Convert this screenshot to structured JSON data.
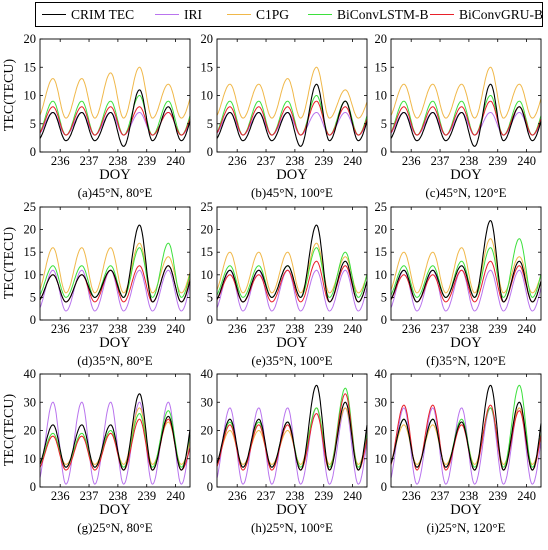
{
  "legend": [
    {
      "label": "CRIM TEC",
      "color": "#000000"
    },
    {
      "label": "IRI",
      "color": "#b974ee"
    },
    {
      "label": "C1PG",
      "color": "#f0b84a"
    },
    {
      "label": "BiConvLSTM-B",
      "color": "#3de03d"
    },
    {
      "label": "BiConvGRU-B",
      "color": "#e8202a"
    }
  ],
  "x_label": "DOY",
  "y_label": "TEC(TECU)",
  "chart_data": [
    {
      "type": "line",
      "title": "(a)45°N, 80°E",
      "xlabel": "DOY",
      "ylabel": "TEC(TECU)",
      "xlim": [
        235.3,
        240.5
      ],
      "ylim": [
        0,
        20
      ],
      "xticks": [
        236,
        237,
        238,
        239,
        240
      ],
      "yticks": [
        0,
        5,
        10,
        15,
        20
      ],
      "x": [
        235.5,
        236.5,
        237.5,
        238.5,
        239.5,
        240.5
      ],
      "series": [
        {
          "name": "CRIM TEC",
          "peaks": [
            7,
            7,
            11,
            8,
            8
          ],
          "troughs": [
            2,
            2,
            1,
            2,
            2
          ]
        },
        {
          "name": "IRI",
          "peaks": [
            7,
            7,
            7,
            7,
            7
          ],
          "troughs": [
            3,
            3,
            3,
            3,
            3
          ]
        },
        {
          "name": "C1PG",
          "peaks": [
            13,
            14,
            15,
            12,
            12
          ],
          "troughs": [
            6,
            6,
            6,
            6,
            6
          ]
        },
        {
          "name": "BiConvLSTM-B",
          "peaks": [
            9,
            9,
            10,
            9,
            9
          ],
          "troughs": [
            3,
            3,
            3,
            3,
            3
          ]
        },
        {
          "name": "BiConvGRU-B",
          "peaks": [
            8,
            8,
            8,
            7,
            8
          ],
          "troughs": [
            3,
            3,
            3,
            3,
            3
          ]
        }
      ]
    },
    {
      "type": "line",
      "title": "(b)45°N, 100°E",
      "xlabel": "DOY",
      "ylabel": "",
      "xlim": [
        235.3,
        240.5
      ],
      "ylim": [
        0,
        20
      ],
      "xticks": [
        236,
        237,
        238,
        239,
        240
      ],
      "yticks": [
        0,
        5,
        10,
        15,
        20
      ],
      "series": [
        {
          "name": "CRIM TEC",
          "peaks": [
            7,
            7,
            12,
            9,
            8
          ],
          "troughs": [
            2,
            2,
            1,
            2,
            2
          ]
        },
        {
          "name": "IRI",
          "peaks": [
            7,
            7,
            7,
            7,
            7
          ],
          "troughs": [
            3,
            3,
            3,
            3,
            3
          ]
        },
        {
          "name": "C1PG",
          "peaks": [
            12,
            13,
            15,
            11,
            11
          ],
          "troughs": [
            6,
            6,
            6,
            6,
            6
          ]
        },
        {
          "name": "BiConvLSTM-B",
          "peaks": [
            9,
            9,
            10,
            9,
            9
          ],
          "troughs": [
            3,
            3,
            3,
            3,
            3
          ]
        },
        {
          "name": "BiConvGRU-B",
          "peaks": [
            8,
            8,
            9,
            8,
            8
          ],
          "troughs": [
            3,
            3,
            3,
            3,
            3
          ]
        }
      ]
    },
    {
      "type": "line",
      "title": "(c)45°N, 120°E",
      "xlabel": "DOY",
      "ylabel": "",
      "xlim": [
        235.3,
        240.5
      ],
      "ylim": [
        0,
        20
      ],
      "xticks": [
        236,
        237,
        238,
        239,
        240
      ],
      "yticks": [
        0,
        5,
        10,
        15,
        20
      ],
      "series": [
        {
          "name": "CRIM TEC",
          "peaks": [
            7,
            7,
            12,
            8,
            8
          ],
          "troughs": [
            2,
            2,
            1,
            2,
            2
          ]
        },
        {
          "name": "IRI",
          "peaks": [
            7,
            7,
            7,
            7,
            7
          ],
          "troughs": [
            3,
            3,
            3,
            3,
            3
          ]
        },
        {
          "name": "C1PG",
          "peaks": [
            12,
            12,
            15,
            12,
            12
          ],
          "troughs": [
            6,
            6,
            6,
            6,
            6
          ]
        },
        {
          "name": "BiConvLSTM-B",
          "peaks": [
            9,
            9,
            10,
            9,
            9
          ],
          "troughs": [
            3,
            3,
            3,
            3,
            3
          ]
        },
        {
          "name": "BiConvGRU-B",
          "peaks": [
            8,
            8,
            9,
            8,
            8
          ],
          "troughs": [
            3,
            3,
            3,
            3,
            3
          ]
        }
      ]
    },
    {
      "type": "line",
      "title": "(d)35°N, 80°E",
      "xlabel": "DOY",
      "ylabel": "TEC(TECU)",
      "xlim": [
        235.3,
        240.5
      ],
      "ylim": [
        0,
        25
      ],
      "xticks": [
        236,
        237,
        238,
        239,
        240
      ],
      "yticks": [
        0,
        5,
        10,
        15,
        20,
        25
      ],
      "series": [
        {
          "name": "CRIM TEC",
          "peaks": [
            10,
            11,
            21,
            12,
            12
          ],
          "troughs": [
            4,
            5,
            5,
            4,
            4
          ]
        },
        {
          "name": "IRI",
          "peaks": [
            11,
            11,
            11,
            11,
            12
          ],
          "troughs": [
            2,
            2,
            2,
            2,
            2
          ]
        },
        {
          "name": "C1PG",
          "peaks": [
            16,
            16,
            17,
            14,
            14
          ],
          "troughs": [
            6,
            6,
            6,
            6,
            6
          ]
        },
        {
          "name": "BiConvLSTM-B",
          "peaks": [
            12,
            12,
            16,
            17,
            14
          ],
          "troughs": [
            5,
            5,
            5,
            5,
            5
          ]
        },
        {
          "name": "BiConvGRU-B",
          "peaks": [
            10,
            11,
            12,
            12,
            13
          ],
          "troughs": [
            4,
            4,
            4,
            4,
            4
          ]
        }
      ]
    },
    {
      "type": "line",
      "title": "(e)35°N, 100°E",
      "xlabel": "DOY",
      "ylabel": "",
      "xlim": [
        235.3,
        240.5
      ],
      "ylim": [
        0,
        25
      ],
      "xticks": [
        236,
        237,
        238,
        239,
        240
      ],
      "yticks": [
        0,
        5,
        10,
        15,
        20,
        25
      ],
      "series": [
        {
          "name": "CRIM TEC",
          "peaks": [
            11,
            12,
            21,
            13,
            12
          ],
          "troughs": [
            4,
            5,
            5,
            4,
            4
          ]
        },
        {
          "name": "IRI",
          "peaks": [
            11,
            11,
            11,
            11,
            11
          ],
          "troughs": [
            2,
            2,
            2,
            2,
            2
          ]
        },
        {
          "name": "C1PG",
          "peaks": [
            15,
            15,
            17,
            14,
            13
          ],
          "troughs": [
            6,
            6,
            6,
            6,
            6
          ]
        },
        {
          "name": "BiConvLSTM-B",
          "peaks": [
            12,
            12,
            16,
            15,
            14
          ],
          "troughs": [
            5,
            5,
            5,
            5,
            5
          ]
        },
        {
          "name": "BiConvGRU-B",
          "peaks": [
            10,
            11,
            13,
            12,
            12
          ],
          "troughs": [
            4,
            4,
            4,
            4,
            4
          ]
        }
      ]
    },
    {
      "type": "line",
      "title": "(f)35°N, 120°E",
      "xlabel": "DOY",
      "ylabel": "",
      "xlim": [
        235.3,
        240.5
      ],
      "ylim": [
        0,
        25
      ],
      "xticks": [
        236,
        237,
        238,
        239,
        240
      ],
      "yticks": [
        0,
        5,
        10,
        15,
        20,
        25
      ],
      "series": [
        {
          "name": "CRIM TEC",
          "peaks": [
            11,
            12,
            22,
            13,
            12
          ],
          "troughs": [
            4,
            5,
            5,
            4,
            4
          ]
        },
        {
          "name": "IRI",
          "peaks": [
            11,
            11,
            11,
            11,
            11
          ],
          "troughs": [
            2,
            2,
            2,
            2,
            2
          ]
        },
        {
          "name": "C1PG",
          "peaks": [
            15,
            16,
            18,
            14,
            13
          ],
          "troughs": [
            6,
            6,
            6,
            6,
            6
          ]
        },
        {
          "name": "BiConvLSTM-B",
          "peaks": [
            12,
            13,
            16,
            18,
            14
          ],
          "troughs": [
            5,
            5,
            5,
            5,
            5
          ]
        },
        {
          "name": "BiConvGRU-B",
          "peaks": [
            10,
            11,
            13,
            12,
            12
          ],
          "troughs": [
            4,
            4,
            4,
            4,
            4
          ]
        }
      ]
    },
    {
      "type": "line",
      "title": "(g)25°N, 80°E",
      "xlabel": "DOY",
      "ylabel": "TEC(TECU)",
      "xlim": [
        235.3,
        240.5
      ],
      "ylim": [
        0,
        40
      ],
      "xticks": [
        236,
        237,
        238,
        239,
        240
      ],
      "yticks": [
        0,
        10,
        20,
        30,
        40
      ],
      "series": [
        {
          "name": "CRIM TEC",
          "peaks": [
            22,
            22,
            33,
            25,
            31
          ],
          "troughs": [
            7,
            7,
            6,
            6,
            6
          ]
        },
        {
          "name": "IRI",
          "peaks": [
            30,
            30,
            30,
            30,
            30
          ],
          "troughs": [
            1,
            1,
            1,
            1,
            1
          ]
        },
        {
          "name": "C1PG",
          "peaks": [
            18,
            19,
            28,
            23,
            22
          ],
          "troughs": [
            8,
            8,
            8,
            8,
            8
          ]
        },
        {
          "name": "BiConvLSTM-B",
          "peaks": [
            19,
            20,
            26,
            27,
            27
          ],
          "troughs": [
            7,
            7,
            7,
            7,
            7
          ]
        },
        {
          "name": "BiConvGRU-B",
          "peaks": [
            18,
            19,
            24,
            24,
            20
          ],
          "troughs": [
            6,
            6,
            6,
            6,
            6
          ]
        }
      ]
    },
    {
      "type": "line",
      "title": "(h)25°N, 100°E",
      "xlabel": "DOY",
      "ylabel": "",
      "xlim": [
        235.3,
        240.5
      ],
      "ylim": [
        0,
        40
      ],
      "xticks": [
        236,
        237,
        238,
        239,
        240
      ],
      "yticks": [
        0,
        10,
        20,
        30,
        40
      ],
      "series": [
        {
          "name": "CRIM TEC",
          "peaks": [
            24,
            23,
            36,
            30,
            34
          ],
          "troughs": [
            7,
            7,
            6,
            6,
            6
          ]
        },
        {
          "name": "IRI",
          "peaks": [
            28,
            28,
            28,
            28,
            28
          ],
          "troughs": [
            1,
            1,
            1,
            1,
            1
          ]
        },
        {
          "name": "C1PG",
          "peaks": [
            20,
            20,
            28,
            28,
            26
          ],
          "troughs": [
            8,
            8,
            8,
            8,
            8
          ]
        },
        {
          "name": "BiConvLSTM-B",
          "peaks": [
            23,
            23,
            28,
            35,
            28
          ],
          "troughs": [
            7,
            7,
            7,
            7,
            7
          ]
        },
        {
          "name": "BiConvGRU-B",
          "peaks": [
            22,
            22,
            26,
            33,
            26
          ],
          "troughs": [
            6,
            6,
            6,
            6,
            6
          ]
        }
      ]
    },
    {
      "type": "line",
      "title": "(i)25°N, 120°E",
      "xlabel": "DOY",
      "ylabel": "",
      "xlim": [
        235.3,
        240.5
      ],
      "ylim": [
        0,
        40
      ],
      "xticks": [
        236,
        237,
        238,
        239,
        240
      ],
      "yticks": [
        0,
        10,
        20,
        30,
        40
      ],
      "series": [
        {
          "name": "CRIM TEC",
          "peaks": [
            24,
            23,
            36,
            30,
            35
          ],
          "troughs": [
            7,
            7,
            6,
            6,
            6
          ]
        },
        {
          "name": "IRI",
          "peaks": [
            28,
            28,
            28,
            28,
            28
          ],
          "troughs": [
            1,
            1,
            1,
            1,
            1
          ]
        },
        {
          "name": "C1PG",
          "peaks": [
            22,
            22,
            28,
            28,
            26
          ],
          "troughs": [
            8,
            8,
            8,
            8,
            8
          ]
        },
        {
          "name": "BiConvLSTM-B",
          "peaks": [
            24,
            24,
            28,
            36,
            28
          ],
          "troughs": [
            7,
            7,
            7,
            7,
            7
          ]
        },
        {
          "name": "BiConvGRU-B",
          "peaks": [
            29,
            22,
            29,
            27,
            28
          ],
          "troughs": [
            6,
            6,
            6,
            6,
            6
          ]
        }
      ]
    }
  ]
}
